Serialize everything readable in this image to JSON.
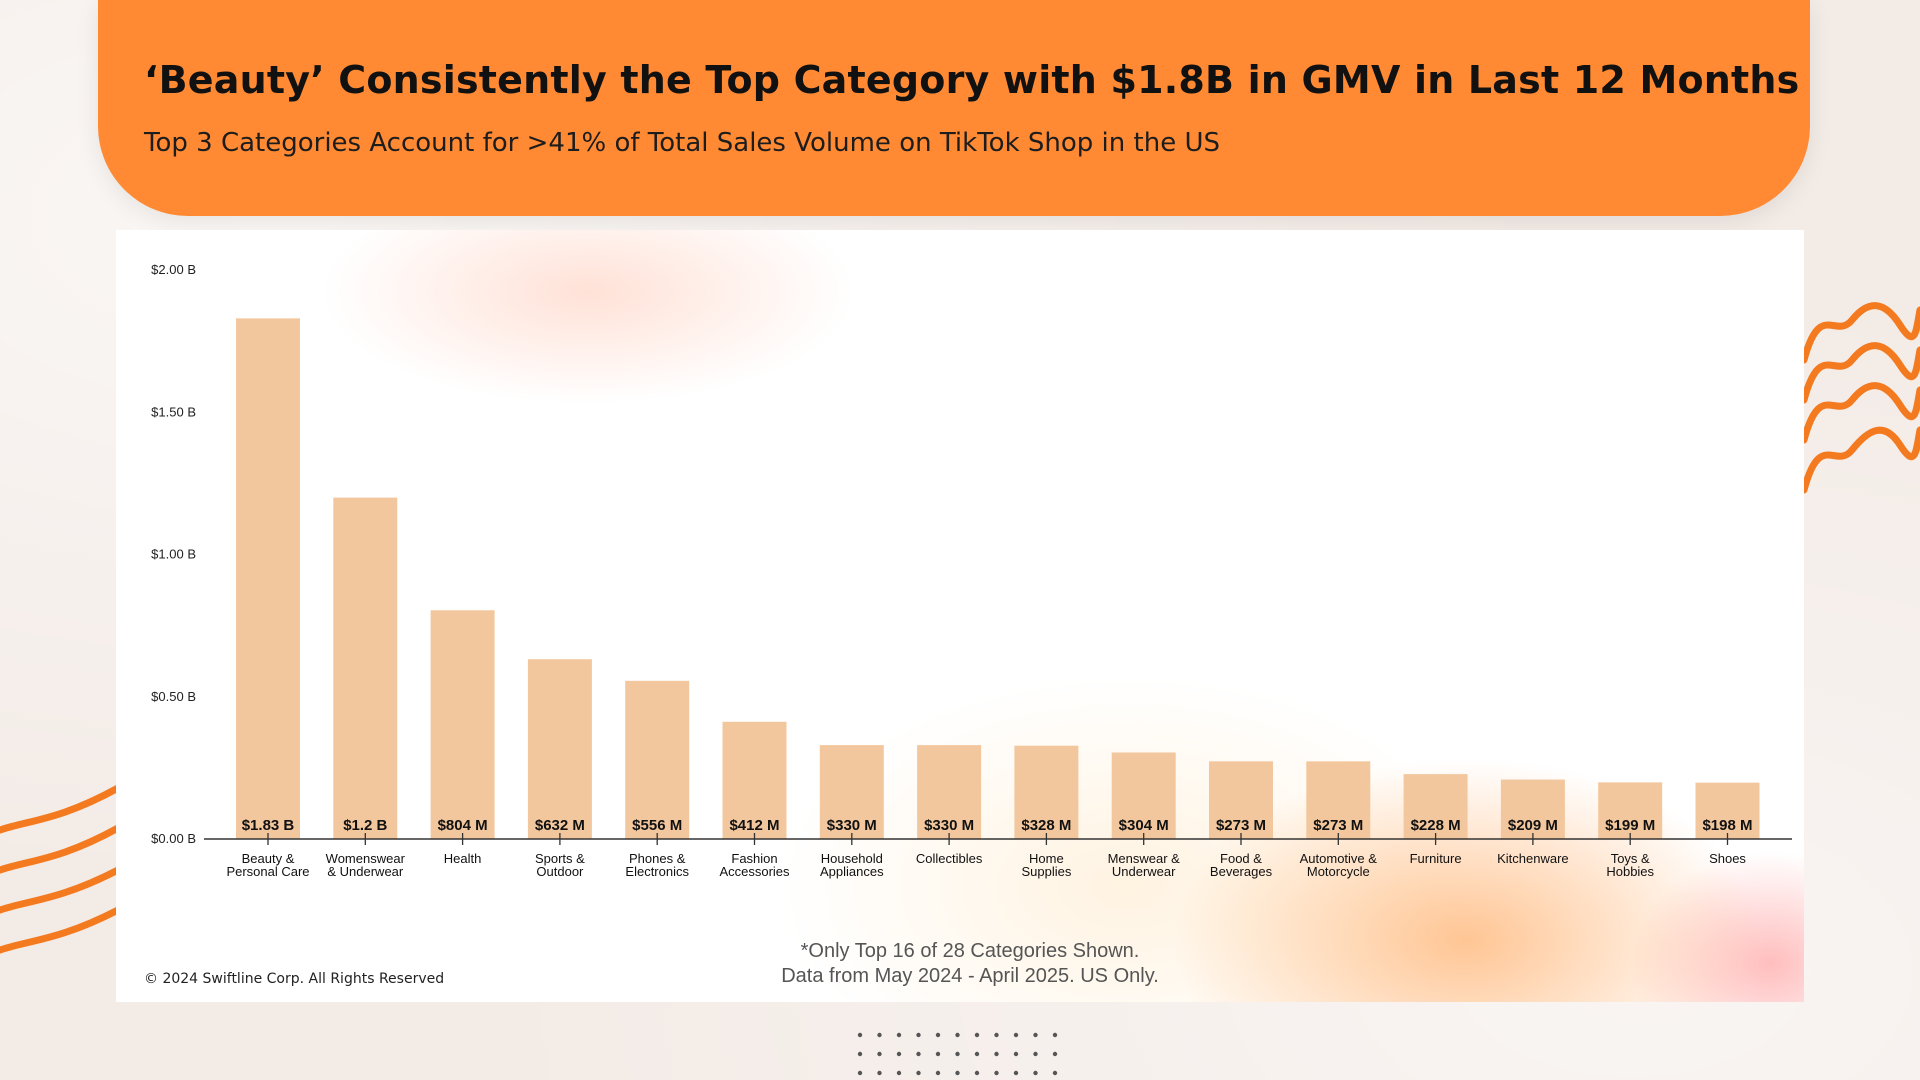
{
  "header": {
    "title": "‘Beauty’ Consistently the Top Category with $1.8B in GMV in Last 12 Months",
    "subtitle": "Top 3 Categories Account for >41% of Total Sales Volume on TikTok Shop in the US"
  },
  "colors": {
    "header_bg": "#ff8a33",
    "bar": "#f3c79d",
    "axis": "#333333",
    "wave": "#f47a20"
  },
  "chart_data": {
    "type": "bar",
    "title": "",
    "xlabel": "",
    "ylabel": "",
    "ylim": [
      0,
      2.0
    ],
    "yticks": [
      {
        "value": 0,
        "label": "$0.00 B"
      },
      {
        "value": 0.5,
        "label": "$0.50 B"
      },
      {
        "value": 1.0,
        "label": "$1.00 B"
      },
      {
        "value": 1.5,
        "label": "$1.50 B"
      },
      {
        "value": 2.0,
        "label": "$2.00 B"
      }
    ],
    "categories": [
      [
        "Beauty &",
        "Personal Care"
      ],
      [
        "Womenswear",
        "& Underwear"
      ],
      [
        "Health"
      ],
      [
        "Sports &",
        "Outdoor"
      ],
      [
        "Phones &",
        "Electronics"
      ],
      [
        "Fashion",
        "Accessories"
      ],
      [
        "Household",
        "Appliances"
      ],
      [
        "Collectibles"
      ],
      [
        "Home",
        "Supplies"
      ],
      [
        "Menswear &",
        "Underwear"
      ],
      [
        "Food &",
        "Beverages"
      ],
      [
        "Automotive &",
        "Motorcycle"
      ],
      [
        "Furniture"
      ],
      [
        "Kitchenware"
      ],
      [
        "Toys &",
        "Hobbies"
      ],
      [
        "Shoes"
      ]
    ],
    "values": [
      1.83,
      1.2,
      0.804,
      0.632,
      0.556,
      0.412,
      0.33,
      0.33,
      0.328,
      0.304,
      0.273,
      0.273,
      0.228,
      0.209,
      0.199,
      0.198
    ],
    "value_labels": [
      "$1.83 B",
      "$1.2 B",
      "$804 M",
      "$632 M",
      "$556 M",
      "$412 M",
      "$330 M",
      "$330 M",
      "$328 M",
      "$304 M",
      "$273 M",
      "$273 M",
      "$228 M",
      "$209 M",
      "$199 M",
      "$198 M"
    ],
    "grid": false,
    "legend": "none"
  },
  "footer": {
    "footnote_line1": "*Only Top 16 of 28 Categories Shown.",
    "footnote_line2": "Data from May 2024 - April 2025. US Only.",
    "copyright": "© 2024 Swiftline Corp. All Rights Reserved"
  }
}
